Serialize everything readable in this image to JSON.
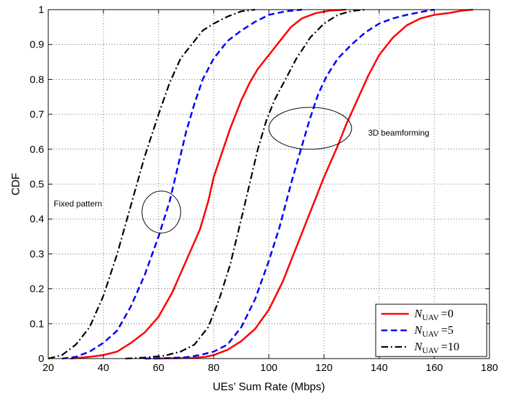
{
  "chart_data": {
    "type": "line",
    "xlabel": "UEs’ Sum Rate (Mbps)",
    "ylabel": "CDF",
    "xlim": [
      20,
      180
    ],
    "ylim": [
      0,
      1
    ],
    "xticks": [
      20,
      40,
      60,
      80,
      100,
      120,
      140,
      160,
      180
    ],
    "yticks": [
      0,
      0.1,
      0.2,
      0.3,
      0.4,
      0.5,
      0.6,
      0.7,
      0.8,
      0.9,
      1
    ],
    "xtick_labels": [
      "20",
      "40",
      "60",
      "80",
      "100",
      "120",
      "140",
      "160",
      "180"
    ],
    "ytick_labels": [
      "0",
      "0.1",
      "0.2",
      "0.3",
      "0.4",
      "0.5",
      "0.6",
      "0.7",
      "0.8",
      "0.9",
      "1"
    ],
    "grid": true,
    "legend_position": "bottom-right",
    "annotations": [
      {
        "label": "Fixed pattern",
        "ellipse_center": [
          61,
          0.42
        ],
        "ellipse_radius": [
          7,
          0.06
        ]
      },
      {
        "label": "3D beamforming",
        "ellipse_center": [
          115,
          0.66
        ],
        "ellipse_radius": [
          15,
          0.06
        ]
      }
    ],
    "series": [
      {
        "legend": {
          "base": "N",
          "sub": "UAV",
          "value": "=0"
        },
        "color": "#ff0000",
        "dash": "solid",
        "width": 2.6,
        "curves": [
          [
            [
              28,
              0
            ],
            [
              35,
              0.005
            ],
            [
              40,
              0.01
            ],
            [
              45,
              0.02
            ],
            [
              50,
              0.045
            ],
            [
              55,
              0.075
            ],
            [
              60,
              0.12
            ],
            [
              65,
              0.19
            ],
            [
              70,
              0.28
            ],
            [
              75,
              0.37
            ],
            [
              78,
              0.45
            ],
            [
              80,
              0.52
            ],
            [
              83,
              0.59
            ],
            [
              86,
              0.66
            ],
            [
              90,
              0.74
            ],
            [
              93,
              0.79
            ],
            [
              96,
              0.83
            ],
            [
              100,
              0.87
            ],
            [
              104,
              0.91
            ],
            [
              108,
              0.95
            ],
            [
              112,
              0.975
            ],
            [
              117,
              0.99
            ],
            [
              122,
              0.997
            ],
            [
              128,
              1
            ]
          ],
          [
            [
              58,
              0
            ],
            [
              65,
              0.001
            ],
            [
              72,
              0.002
            ],
            [
              77,
              0.005
            ],
            [
              80,
              0.01
            ],
            [
              85,
              0.025
            ],
            [
              90,
              0.05
            ],
            [
              95,
              0.085
            ],
            [
              100,
              0.14
            ],
            [
              105,
              0.22
            ],
            [
              110,
              0.32
            ],
            [
              115,
              0.42
            ],
            [
              120,
              0.52
            ],
            [
              125,
              0.61
            ],
            [
              128,
              0.67
            ],
            [
              132,
              0.74
            ],
            [
              136,
              0.81
            ],
            [
              140,
              0.87
            ],
            [
              145,
              0.92
            ],
            [
              150,
              0.955
            ],
            [
              155,
              0.975
            ],
            [
              160,
              0.985
            ],
            [
              165,
              0.99
            ],
            [
              170,
              0.997
            ],
            [
              174,
              1
            ]
          ]
        ]
      },
      {
        "legend": {
          "base": "N",
          "sub": "UAV",
          "value": "=5"
        },
        "color": "#0000ff",
        "dash": "9,5",
        "width": 2.6,
        "curves": [
          [
            [
              25,
              0
            ],
            [
              30,
              0.005
            ],
            [
              35,
              0.02
            ],
            [
              40,
              0.045
            ],
            [
              45,
              0.08
            ],
            [
              50,
              0.15
            ],
            [
              55,
              0.24
            ],
            [
              60,
              0.35
            ],
            [
              64,
              0.45
            ],
            [
              67,
              0.55
            ],
            [
              70,
              0.65
            ],
            [
              73,
              0.73
            ],
            [
              76,
              0.8
            ],
            [
              80,
              0.86
            ],
            [
              85,
              0.91
            ],
            [
              90,
              0.94
            ],
            [
              95,
              0.965
            ],
            [
              100,
              0.985
            ],
            [
              106,
              0.995
            ],
            [
              112,
              1
            ]
          ],
          [
            [
              55,
              0
            ],
            [
              62,
              0.001
            ],
            [
              70,
              0.004
            ],
            [
              75,
              0.01
            ],
            [
              80,
              0.02
            ],
            [
              85,
              0.04
            ],
            [
              90,
              0.09
            ],
            [
              95,
              0.17
            ],
            [
              100,
              0.28
            ],
            [
              104,
              0.38
            ],
            [
              108,
              0.5
            ],
            [
              112,
              0.61
            ],
            [
              115,
              0.69
            ],
            [
              118,
              0.76
            ],
            [
              121,
              0.81
            ],
            [
              125,
              0.86
            ],
            [
              130,
              0.9
            ],
            [
              135,
              0.935
            ],
            [
              140,
              0.96
            ],
            [
              145,
              0.975
            ],
            [
              150,
              0.985
            ],
            [
              155,
              0.993
            ],
            [
              160,
              1
            ]
          ]
        ]
      },
      {
        "legend": {
          "base": "N",
          "sub": "UAV",
          "value": "=10"
        },
        "color": "#000000",
        "dash": "10,4,2,4",
        "width": 2.3,
        "curves": [
          [
            [
              20,
              0
            ],
            [
              25,
              0.01
            ],
            [
              30,
              0.04
            ],
            [
              35,
              0.09
            ],
            [
              40,
              0.18
            ],
            [
              45,
              0.3
            ],
            [
              50,
              0.44
            ],
            [
              55,
              0.58
            ],
            [
              60,
              0.7
            ],
            [
              64,
              0.79
            ],
            [
              68,
              0.86
            ],
            [
              72,
              0.9
            ],
            [
              76,
              0.94
            ],
            [
              80,
              0.96
            ],
            [
              85,
              0.98
            ],
            [
              90,
              0.995
            ],
            [
              95,
              1
            ]
          ],
          [
            [
              48,
              0
            ],
            [
              55,
              0.003
            ],
            [
              62,
              0.008
            ],
            [
              68,
              0.02
            ],
            [
              73,
              0.04
            ],
            [
              78,
              0.09
            ],
            [
              82,
              0.17
            ],
            [
              86,
              0.27
            ],
            [
              90,
              0.4
            ],
            [
              93,
              0.5
            ],
            [
              96,
              0.6
            ],
            [
              99,
              0.68
            ],
            [
              102,
              0.74
            ],
            [
              106,
              0.8
            ],
            [
              110,
              0.86
            ],
            [
              115,
              0.92
            ],
            [
              120,
              0.96
            ],
            [
              125,
              0.985
            ],
            [
              130,
              0.996
            ],
            [
              135,
              1
            ]
          ]
        ]
      }
    ]
  }
}
